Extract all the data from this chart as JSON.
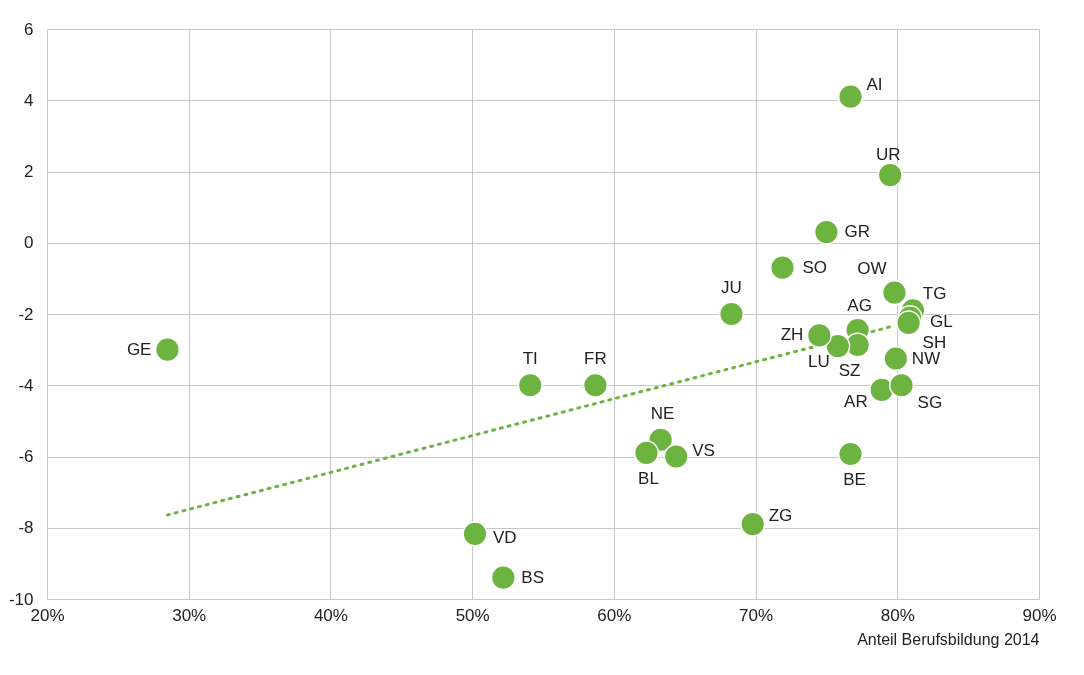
{
  "chart_data": {
    "type": "scatter",
    "xlabel": "Anteil Berufsbildung 2014",
    "grid": true,
    "xlim": [
      20,
      90
    ],
    "ylim": [
      -10,
      6
    ],
    "xticks": [
      {
        "value": 20,
        "label": "20%"
      },
      {
        "value": 30,
        "label": "30%"
      },
      {
        "value": 40,
        "label": "40%"
      },
      {
        "value": 50,
        "label": "50%"
      },
      {
        "value": 60,
        "label": "60%"
      },
      {
        "value": 70,
        "label": "70%"
      },
      {
        "value": 80,
        "label": "80%"
      },
      {
        "value": 90,
        "label": "90%"
      }
    ],
    "yticks": [
      -10,
      -8,
      -6,
      -4,
      -2,
      0,
      2,
      4,
      6
    ],
    "series": [
      {
        "type": "scatter",
        "color": "#6db33f",
        "marker": "circle",
        "x": [
          76.7,
          79.5,
          75.0,
          71.9,
          68.3,
          28.5,
          54.1,
          58.7,
          79.8,
          81.1,
          80.9,
          80.8,
          77.2,
          77.2,
          75.8,
          74.5,
          79.9,
          78.9,
          80.3,
          76.7,
          63.3,
          62.3,
          64.4,
          69.8,
          50.2,
          52.2
        ],
        "values": [
          4.1,
          1.9,
          0.3,
          -0.7,
          -2.0,
          -3.0,
          -4.0,
          -4.0,
          -1.4,
          -1.9,
          -2.1,
          -2.25,
          -2.45,
          -2.87,
          -2.9,
          -2.6,
          -3.25,
          -4.13,
          -4.0,
          -5.93,
          -5.53,
          -5.9,
          -6.0,
          -7.9,
          -8.17,
          -9.4
        ],
        "value_labels": [
          "AI",
          "UR",
          "GR",
          "SO",
          "JU",
          "GE",
          "TI",
          "FR",
          "OW",
          "TG",
          "GL",
          "SH",
          "AG",
          "SZ",
          "LU",
          "ZH",
          "NW",
          "AR",
          "SG",
          "BE",
          "NE",
          "BL",
          "VS",
          "ZG",
          "VD",
          "BS"
        ]
      },
      {
        "type": "line",
        "color": "#6db33f",
        "line_style": "dotted",
        "x": [
          28.5,
          79.8
        ],
        "values": [
          -7.64,
          -2.33
        ]
      }
    ]
  }
}
